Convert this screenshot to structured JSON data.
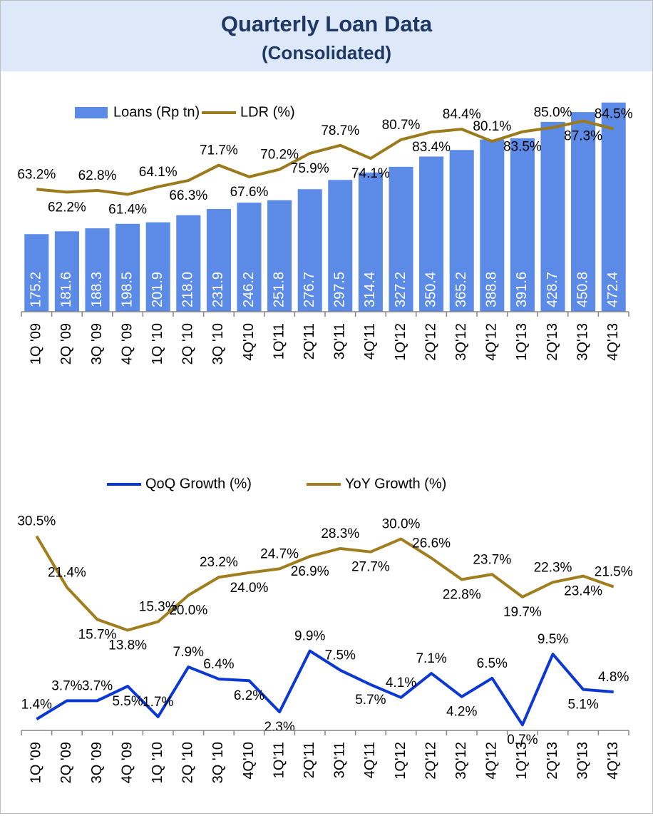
{
  "header": {
    "title": "Quarterly Loan Data",
    "subtitle": "(Consolidated)"
  },
  "chart_data": [
    {
      "type": "bar",
      "categories": [
        "1Q '09",
        "2Q '09",
        "3Q '09",
        "4Q '09",
        "1Q '10",
        "2Q '10",
        "3Q '10",
        "4Q'10",
        "1Q'11",
        "2Q'11",
        "3Q'11",
        "4Q'11",
        "1Q'12",
        "2Q'12",
        "3Q'12",
        "4Q'12",
        "1Q'13",
        "2Q'13",
        "3Q'13",
        "4Q'13"
      ],
      "series": [
        {
          "name": "Loans (Rp tn)",
          "type": "bar",
          "color": "#5b8be6",
          "values": [
            175.2,
            181.6,
            188.3,
            198.5,
            201.9,
            218.0,
            231.9,
            246.2,
            251.8,
            276.7,
            297.5,
            314.4,
            327.2,
            350.4,
            365.2,
            388.8,
            391.6,
            428.7,
            450.8,
            472.4
          ],
          "value_labels": [
            "175.2",
            "181.6",
            "188.3",
            "198.5",
            "201.9",
            "218.0",
            "231.9",
            "246.2",
            "251.8",
            "276.7",
            "297.5",
            "314.4",
            "327.2",
            "350.4",
            "365.2",
            "388.8",
            "391.6",
            "428.7",
            "450.8",
            "472.4"
          ]
        },
        {
          "name": "LDR (%)",
          "type": "line",
          "axis": "y2",
          "color": "#9b7a1b",
          "values": [
            63.2,
            62.2,
            62.8,
            61.4,
            64.1,
            66.3,
            71.7,
            67.6,
            70.2,
            75.9,
            78.7,
            74.1,
            80.7,
            83.4,
            84.4,
            80.1,
            83.5,
            85.0,
            87.3,
            84.5
          ],
          "value_labels": [
            "63.2%",
            "62.2%",
            "62.8%",
            "61.4%",
            "64.1%",
            "66.3%",
            "71.7%",
            "67.6%",
            "70.2%",
            "75.9%",
            "78.7%",
            "74.1%",
            "80.7%",
            "83.4%",
            "84.4%",
            "80.1%",
            "83.5%",
            "85.0%",
            "87.3%",
            "84.5%"
          ]
        }
      ],
      "ylim": [
        0,
        480
      ],
      "y2lim": [
        20,
        95
      ],
      "legend": "top"
    },
    {
      "type": "line",
      "categories": [
        "1Q '09",
        "2Q '09",
        "3Q '09",
        "4Q '09",
        "1Q '10",
        "2Q '10",
        "3Q '10",
        "4Q'10",
        "1Q'11",
        "2Q'11",
        "3Q'11",
        "4Q'11",
        "1Q'12",
        "2Q'12",
        "3Q'12",
        "4Q'12",
        "1Q'13",
        "2Q'13",
        "3Q'13",
        "4Q'13"
      ],
      "series": [
        {
          "name": "QoQ Growth (%)",
          "color": "#0b37d4",
          "values": [
            1.4,
            3.7,
            3.7,
            5.5,
            1.7,
            7.9,
            6.4,
            6.2,
            2.3,
            9.9,
            7.5,
            5.7,
            4.1,
            7.1,
            4.2,
            6.5,
            0.7,
            9.5,
            5.1,
            4.8
          ],
          "value_labels": [
            "1.4%",
            "3.7%",
            "3.7%",
            "5.5%",
            "1.7%",
            "7.9%",
            "6.4%",
            "6.2%",
            "2.3%",
            "9.9%",
            "7.5%",
            "5.7%",
            "4.1%",
            "7.1%",
            "4.2%",
            "6.5%",
            "0.7%",
            "9.5%",
            "5.1%",
            "4.8%"
          ]
        },
        {
          "name": "YoY Growth (%)",
          "axis": "y2",
          "color": "#a07e1e",
          "values": [
            30.5,
            21.4,
            15.7,
            13.8,
            15.3,
            20.0,
            23.2,
            24.0,
            24.7,
            26.9,
            28.3,
            27.7,
            30.0,
            26.6,
            22.8,
            23.7,
            19.7,
            22.3,
            23.4,
            21.5
          ],
          "value_labels": [
            "30.5%",
            "21.4%",
            "15.7%",
            "13.8%",
            "15.3%",
            "20.0%",
            "23.2%",
            "24.0%",
            "24.7%",
            "26.9%",
            "28.3%",
            "27.7%",
            "30.0%",
            "26.6%",
            "22.8%",
            "23.7%",
            "19.7%",
            "22.3%",
            "23.4%",
            "21.5%"
          ]
        }
      ],
      "ylim": [
        0,
        27
      ],
      "y2lim": [
        -4,
        34.5
      ],
      "legend": "top"
    }
  ]
}
